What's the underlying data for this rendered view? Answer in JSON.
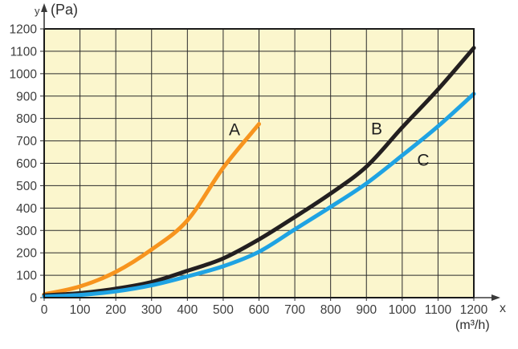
{
  "chart_data": {
    "type": "line",
    "title": "",
    "ylabel": "y (Pa)",
    "xlabel": "x (m³/h)",
    "y_axis_name": "y",
    "y_axis_unit": "(Pa)",
    "x_axis_name": "x",
    "x_axis_unit": "(m³/h)",
    "xlim": [
      0,
      1200
    ],
    "ylim": [
      0,
      1200
    ],
    "x_ticks": [
      0,
      100,
      200,
      300,
      400,
      500,
      600,
      700,
      800,
      900,
      1000,
      1100,
      1200
    ],
    "y_ticks": [
      0,
      100,
      200,
      300,
      400,
      500,
      600,
      700,
      800,
      900,
      1000,
      1100,
      1200
    ],
    "grid": true,
    "legend_position": "none (curves labeled inline on plot)",
    "series": [
      {
        "name": "A",
        "color": "#F7941E",
        "x": [
          0,
          100,
          200,
          300,
          400,
          500,
          600
        ],
        "y": [
          15,
          50,
          115,
          215,
          345,
          580,
          775
        ]
      },
      {
        "name": "B",
        "color": "#231F20",
        "x": [
          0,
          100,
          200,
          300,
          400,
          500,
          600,
          700,
          800,
          900,
          1000,
          1100,
          1200
        ],
        "y": [
          10,
          20,
          40,
          70,
          120,
          175,
          260,
          360,
          465,
          585,
          760,
          930,
          1115
        ]
      },
      {
        "name": "C",
        "color": "#1FA3E3",
        "x": [
          0,
          100,
          200,
          300,
          400,
          500,
          600,
          700,
          800,
          900,
          1000,
          1100,
          1200
        ],
        "y": [
          5,
          12,
          28,
          55,
          95,
          140,
          205,
          305,
          405,
          510,
          635,
          765,
          910
        ]
      }
    ],
    "annotations": [
      {
        "text": "A",
        "x": 532,
        "y": 748
      },
      {
        "text": "B",
        "x": 928,
        "y": 752
      },
      {
        "text": "C",
        "x": 1058,
        "y": 612
      }
    ]
  },
  "style": {
    "plot_bg": "#FBF6CD",
    "grid_color": "#2B2B2B",
    "border_color": "#1A1A1A",
    "tick_label_color": "#3D3D3D",
    "tick_font_size": 15.5,
    "annotation_color": "#1F1F1F",
    "axis_arrow_color": "#3A3A3A",
    "curve_width": 5,
    "page_bg": "#FFFFFF"
  }
}
